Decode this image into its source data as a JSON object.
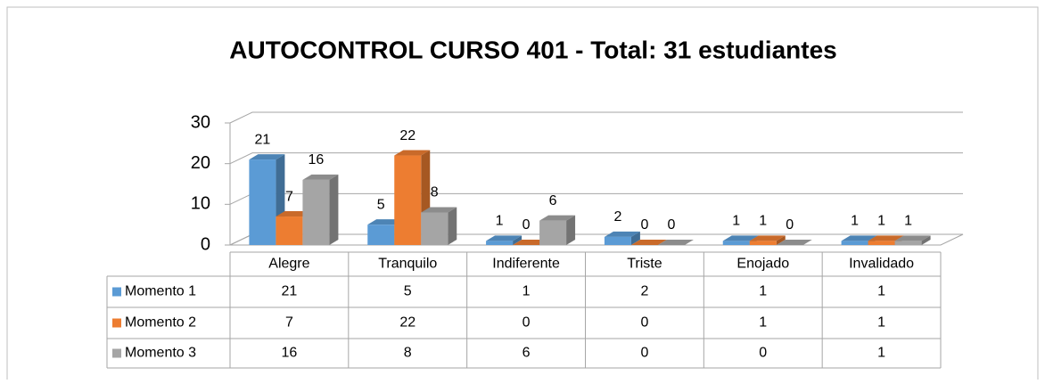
{
  "chart_data": {
    "type": "bar3d",
    "title": "AUTOCONTROL CURSO 401 - Total: 31 estudiantes",
    "categories": [
      "Alegre",
      "Tranquilo",
      "Indiferente",
      "Triste",
      "Enojado",
      "Invalidado"
    ],
    "series": [
      {
        "name": "Momento 1",
        "color": "#5b9bd5",
        "values": [
          21,
          5,
          1,
          2,
          1,
          1
        ]
      },
      {
        "name": "Momento 2",
        "color": "#ed7d31",
        "values": [
          7,
          22,
          0,
          0,
          1,
          1
        ]
      },
      {
        "name": "Momento 3",
        "color": "#a5a5a5",
        "values": [
          16,
          8,
          6,
          0,
          0,
          1
        ]
      }
    ],
    "ylim": [
      0,
      30
    ],
    "yticks": [
      0,
      10,
      20,
      30
    ],
    "grid": true,
    "data_table": true
  }
}
